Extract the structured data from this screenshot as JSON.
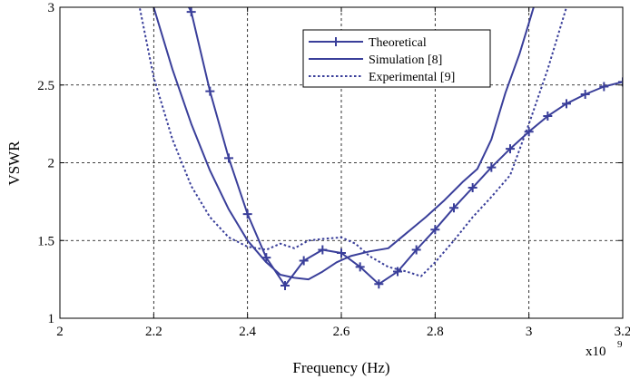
{
  "chart_data": {
    "type": "line",
    "xlabel": "Frequency (Hz)",
    "ylabel": "VSWR",
    "x_multiplier_label": "x10",
    "x_multiplier_exponent": "9",
    "xlim": [
      2,
      3.2
    ],
    "ylim": [
      1,
      3
    ],
    "x_ticks": [
      2,
      2.2,
      2.4,
      2.6,
      2.8,
      3,
      3.2
    ],
    "x_tick_labels": [
      "2",
      "2.2",
      "2.4",
      "2.6",
      "2.8",
      "3",
      "3.2"
    ],
    "y_ticks": [
      1,
      1.5,
      2,
      2.5,
      3
    ],
    "y_tick_labels": [
      "1",
      "1.5",
      "2",
      "2.5",
      "3"
    ],
    "grid": true,
    "legend_position": "top-center",
    "series": [
      {
        "name": "Theoretical",
        "color": "#3a3f9a",
        "style": "solid",
        "marker": "plus",
        "x": [
          2.2,
          2.24,
          2.28,
          2.32,
          2.36,
          2.4,
          2.44,
          2.48,
          2.52,
          2.56,
          2.6,
          2.64,
          2.68,
          2.72,
          2.76,
          2.8,
          2.84,
          2.88,
          2.92,
          2.96,
          3.0,
          3.04,
          3.08,
          3.12,
          3.16,
          3.2
        ],
        "y": [
          3.5,
          3.2,
          2.97,
          2.46,
          2.03,
          1.67,
          1.39,
          1.21,
          1.37,
          1.44,
          1.42,
          1.33,
          1.22,
          1.3,
          1.44,
          1.57,
          1.71,
          1.84,
          1.97,
          2.09,
          2.2,
          2.3,
          2.38,
          2.44,
          2.49,
          2.52
        ],
        "marker_x": [
          2.28,
          2.32,
          2.36,
          2.4,
          2.44,
          2.48,
          2.52,
          2.56,
          2.6,
          2.64,
          2.68,
          2.72,
          2.76,
          2.8,
          2.84,
          2.88,
          2.92,
          2.96,
          3.0,
          3.04,
          3.08,
          3.12,
          3.16,
          3.2
        ]
      },
      {
        "name": "Simulation [8]",
        "color": "#3a3f9a",
        "style": "solid",
        "marker": "none",
        "x": [
          2.18,
          2.2,
          2.24,
          2.28,
          2.32,
          2.36,
          2.4,
          2.44,
          2.47,
          2.5,
          2.53,
          2.56,
          2.59,
          2.62,
          2.66,
          2.7,
          2.74,
          2.78,
          2.82,
          2.86,
          2.89,
          2.92,
          2.95,
          2.98,
          3.0,
          3.02
        ],
        "y": [
          3.3,
          3.0,
          2.6,
          2.25,
          1.95,
          1.7,
          1.5,
          1.36,
          1.28,
          1.26,
          1.25,
          1.3,
          1.36,
          1.4,
          1.43,
          1.45,
          1.55,
          1.65,
          1.76,
          1.88,
          1.96,
          2.15,
          2.45,
          2.7,
          2.9,
          3.1
        ]
      },
      {
        "name": "Experimental [9]",
        "color": "#3a3f9a",
        "style": "dotted",
        "marker": "none",
        "x": [
          2.14,
          2.17,
          2.2,
          2.24,
          2.28,
          2.32,
          2.36,
          2.4,
          2.44,
          2.47,
          2.5,
          2.53,
          2.56,
          2.6,
          2.63,
          2.66,
          2.7,
          2.74,
          2.77,
          2.8,
          2.84,
          2.88,
          2.92,
          2.96,
          3.0,
          3.04,
          3.07,
          3.09
        ],
        "y": [
          3.3,
          3.0,
          2.55,
          2.15,
          1.85,
          1.65,
          1.52,
          1.46,
          1.44,
          1.48,
          1.45,
          1.5,
          1.51,
          1.52,
          1.48,
          1.4,
          1.33,
          1.3,
          1.27,
          1.36,
          1.5,
          1.65,
          1.78,
          1.92,
          2.25,
          2.6,
          2.9,
          3.1
        ]
      }
    ]
  }
}
